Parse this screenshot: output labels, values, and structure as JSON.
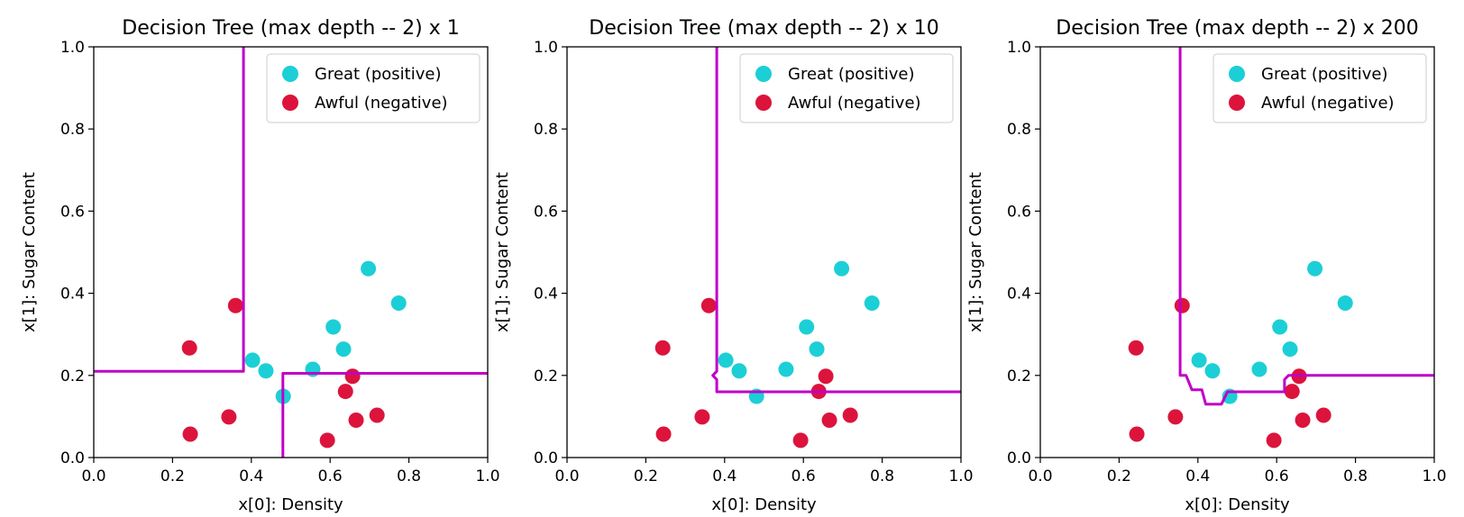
{
  "chart_data": [
    {
      "type": "scatter",
      "title": "Decision Tree (max depth -- 2) x 1",
      "xlabel": "x[0]: Density",
      "ylabel": "x[1]: Sugar Content",
      "xlim": [
        0,
        1
      ],
      "ylim": [
        0,
        1
      ],
      "xticks": [
        "0.0",
        "0.2",
        "0.4",
        "0.6",
        "0.8",
        "1.0"
      ],
      "yticks": [
        "0.0",
        "0.2",
        "0.4",
        "0.6",
        "0.8",
        "1.0"
      ],
      "grid": false,
      "legend_position": "top-right",
      "series": [
        {
          "name": "Great (positive)",
          "color": "#1ccfd6",
          "points": [
            [
              0.403,
              0.237
            ],
            [
              0.437,
              0.211
            ],
            [
              0.481,
              0.149
            ],
            [
              0.556,
              0.215
            ],
            [
              0.608,
              0.318
            ],
            [
              0.634,
              0.264
            ],
            [
              0.697,
              0.46
            ],
            [
              0.774,
              0.376
            ]
          ]
        },
        {
          "name": "Awful (negative)",
          "color": "#dc143c",
          "points": [
            [
              0.36,
              0.37
            ],
            [
              0.243,
              0.267
            ],
            [
              0.245,
              0.057
            ],
            [
              0.343,
              0.099
            ],
            [
              0.639,
              0.161
            ],
            [
              0.657,
              0.198
            ],
            [
              0.593,
              0.042
            ],
            [
              0.666,
              0.091
            ],
            [
              0.719,
              0.103
            ]
          ]
        }
      ],
      "boundary": {
        "color": "#c000c8",
        "lines": [
          [
            [
              0.0,
              0.21
            ],
            [
              0.38,
              0.21
            ],
            [
              0.38,
              1.0
            ]
          ],
          [
            [
              0.48,
              0.0
            ],
            [
              0.48,
              0.205
            ],
            [
              1.0,
              0.205
            ]
          ]
        ]
      }
    },
    {
      "type": "scatter",
      "title": "Decision Tree (max depth -- 2) x 10",
      "xlabel": "x[0]: Density",
      "ylabel": "x[1]: Sugar Content",
      "xlim": [
        0,
        1
      ],
      "ylim": [
        0,
        1
      ],
      "xticks": [
        "0.0",
        "0.2",
        "0.4",
        "0.6",
        "0.8",
        "1.0"
      ],
      "yticks": [
        "0.0",
        "0.2",
        "0.4",
        "0.6",
        "0.8",
        "1.0"
      ],
      "grid": false,
      "legend_position": "top-right",
      "series": [
        {
          "name": "Great (positive)",
          "color": "#1ccfd6",
          "points": [
            [
              0.403,
              0.237
            ],
            [
              0.437,
              0.211
            ],
            [
              0.481,
              0.149
            ],
            [
              0.556,
              0.215
            ],
            [
              0.608,
              0.318
            ],
            [
              0.634,
              0.264
            ],
            [
              0.697,
              0.46
            ],
            [
              0.774,
              0.376
            ]
          ]
        },
        {
          "name": "Awful (negative)",
          "color": "#dc143c",
          "points": [
            [
              0.36,
              0.37
            ],
            [
              0.243,
              0.267
            ],
            [
              0.245,
              0.057
            ],
            [
              0.343,
              0.099
            ],
            [
              0.639,
              0.161
            ],
            [
              0.657,
              0.198
            ],
            [
              0.593,
              0.042
            ],
            [
              0.666,
              0.091
            ],
            [
              0.719,
              0.103
            ]
          ]
        }
      ],
      "boundary": {
        "color": "#c000c8",
        "lines": [
          [
            [
              0.38,
              1.0
            ],
            [
              0.38,
              0.21
            ],
            [
              0.37,
              0.2
            ],
            [
              0.38,
              0.19
            ],
            [
              0.38,
              0.16
            ],
            [
              1.0,
              0.16
            ]
          ]
        ]
      }
    },
    {
      "type": "scatter",
      "title": "Decision Tree (max depth -- 2) x 200",
      "xlabel": "x[0]: Density",
      "ylabel": "x[1]: Sugar Content",
      "xlim": [
        0,
        1
      ],
      "ylim": [
        0,
        1
      ],
      "xticks": [
        "0.0",
        "0.2",
        "0.4",
        "0.6",
        "0.8",
        "1.0"
      ],
      "yticks": [
        "0.0",
        "0.2",
        "0.4",
        "0.6",
        "0.8",
        "1.0"
      ],
      "grid": false,
      "legend_position": "top-right",
      "series": [
        {
          "name": "Great (positive)",
          "color": "#1ccfd6",
          "points": [
            [
              0.403,
              0.237
            ],
            [
              0.437,
              0.211
            ],
            [
              0.481,
              0.149
            ],
            [
              0.556,
              0.215
            ],
            [
              0.608,
              0.318
            ],
            [
              0.634,
              0.264
            ],
            [
              0.697,
              0.46
            ],
            [
              0.774,
              0.376
            ]
          ]
        },
        {
          "name": "Awful (negative)",
          "color": "#dc143c",
          "points": [
            [
              0.36,
              0.37
            ],
            [
              0.243,
              0.267
            ],
            [
              0.245,
              0.057
            ],
            [
              0.343,
              0.099
            ],
            [
              0.639,
              0.161
            ],
            [
              0.657,
              0.198
            ],
            [
              0.593,
              0.042
            ],
            [
              0.666,
              0.091
            ],
            [
              0.719,
              0.103
            ]
          ]
        }
      ],
      "boundary": {
        "color": "#c000c8",
        "lines": [
          [
            [
              0.355,
              1.0
            ],
            [
              0.355,
              0.2
            ],
            [
              0.37,
              0.2
            ],
            [
              0.385,
              0.165
            ],
            [
              0.41,
              0.165
            ],
            [
              0.42,
              0.13
            ],
            [
              0.46,
              0.13
            ],
            [
              0.475,
              0.16
            ],
            [
              0.62,
              0.16
            ],
            [
              0.62,
              0.19
            ],
            [
              0.63,
              0.2
            ],
            [
              1.0,
              0.2
            ]
          ]
        ]
      }
    }
  ]
}
